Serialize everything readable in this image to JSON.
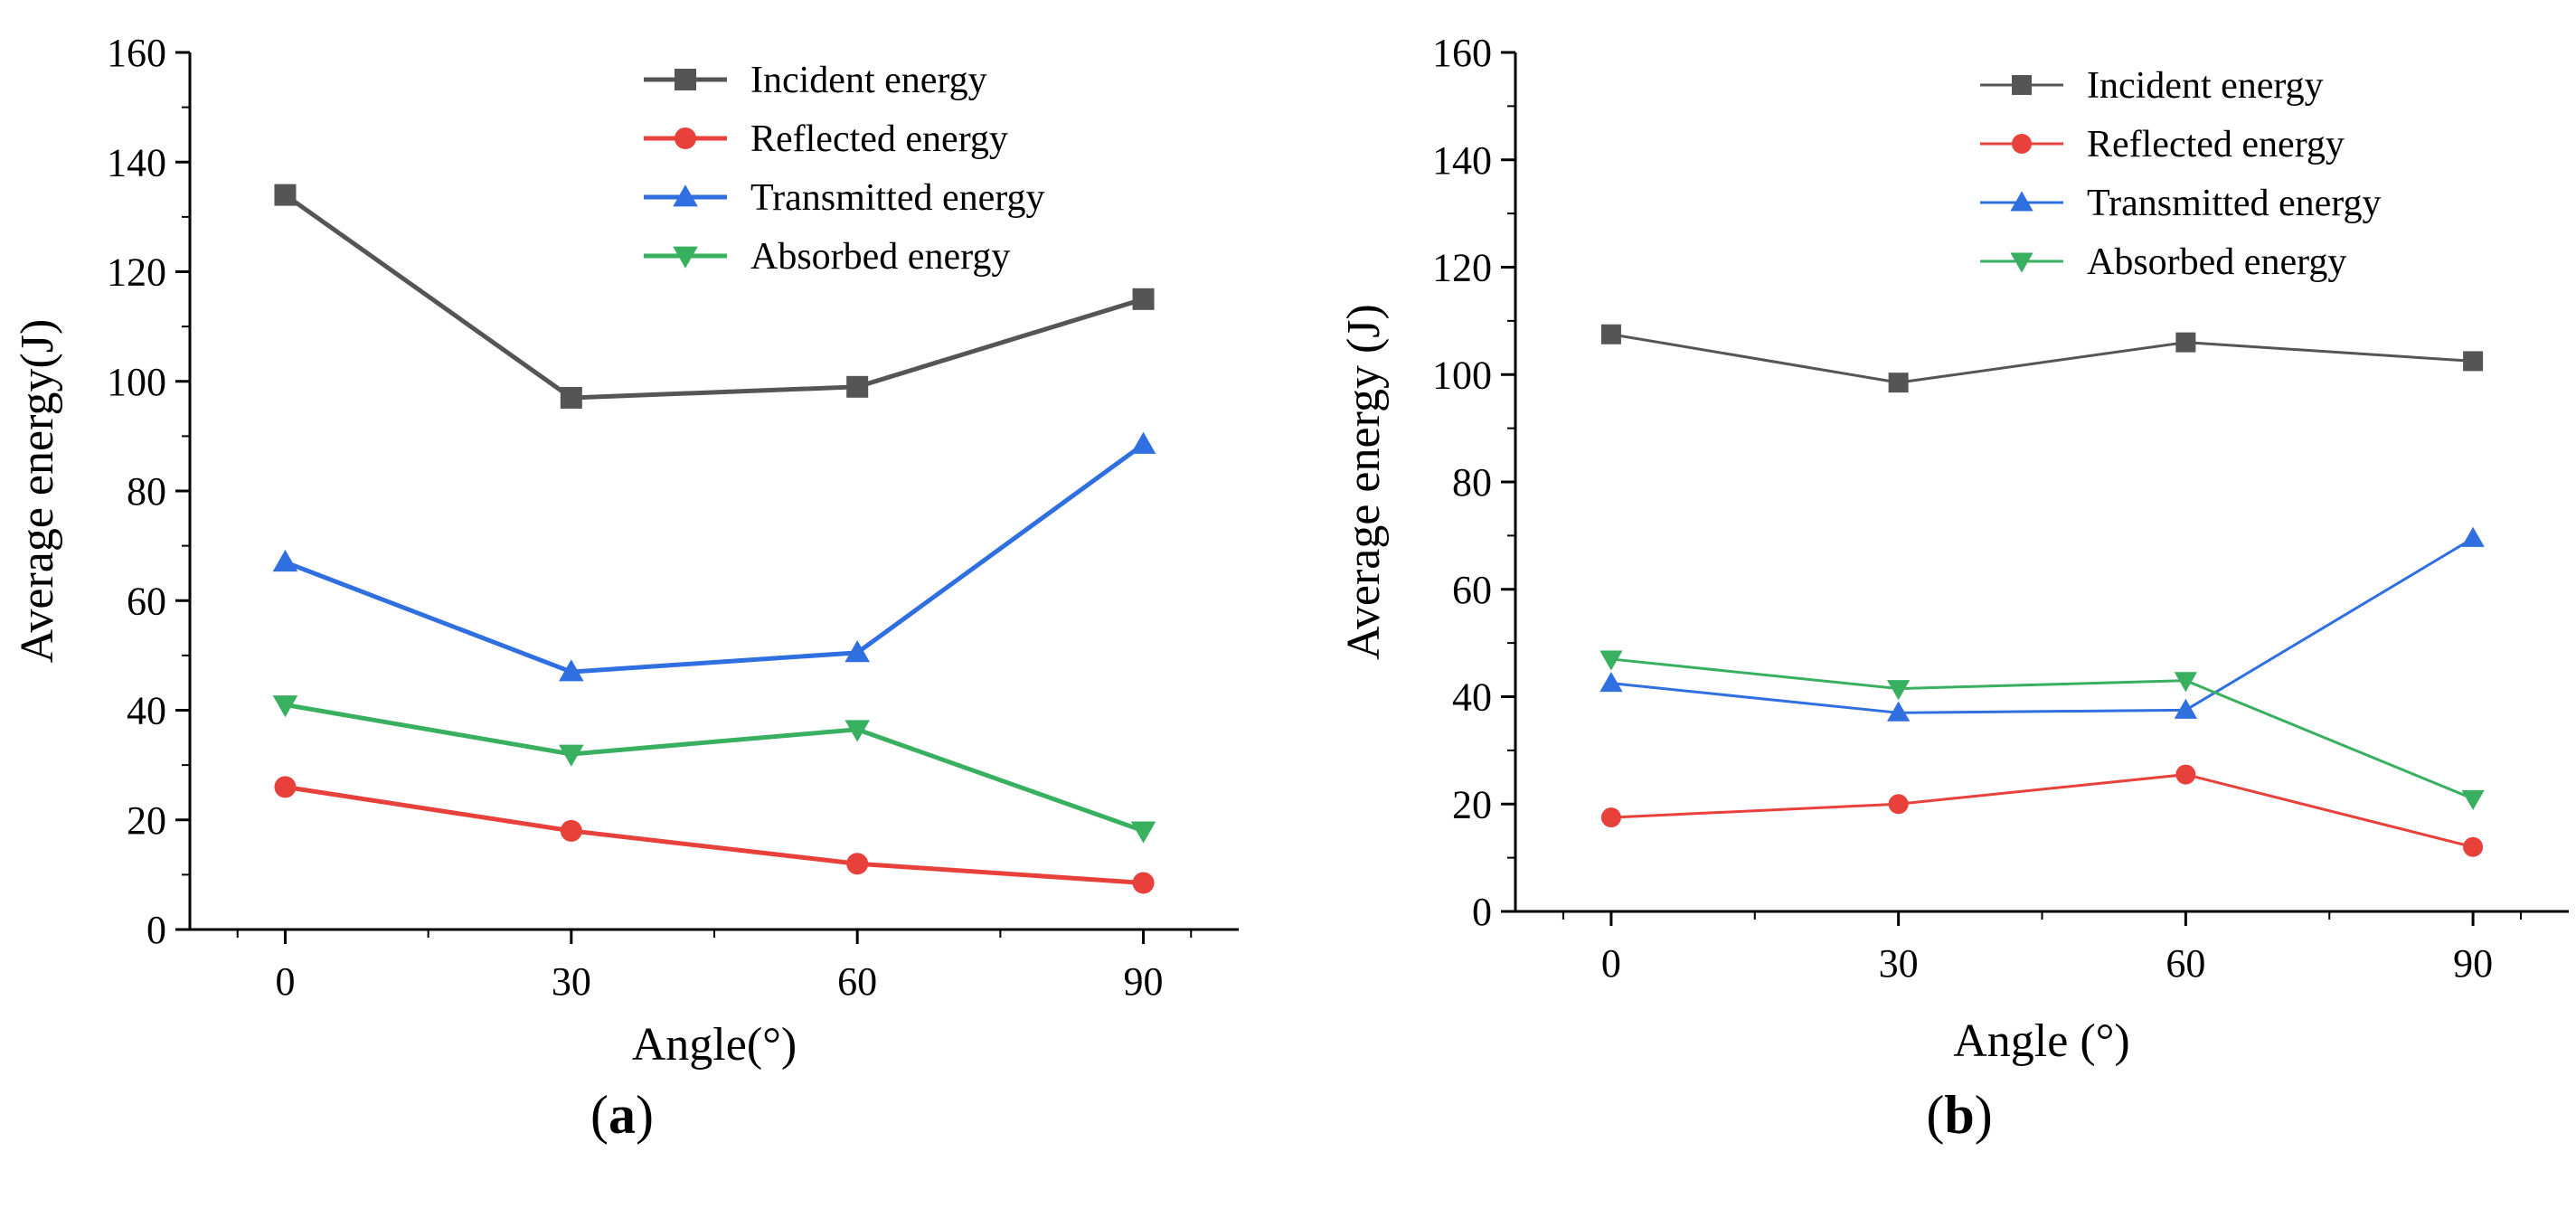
{
  "figure": {
    "panel_labels": [
      {
        "open": "(",
        "letter": "a",
        "close": ")"
      },
      {
        "open": "(",
        "letter": "b",
        "close": ")"
      }
    ]
  },
  "chart_data": [
    {
      "type": "line",
      "panel": "a",
      "xlabel": "Angle(°)",
      "ylabel": "Average energy(J)",
      "x": [
        0,
        30,
        60,
        90
      ],
      "xticks": [
        "0",
        "30",
        "60",
        "90"
      ],
      "xlim": [
        -10,
        100
      ],
      "ylim": [
        0,
        160
      ],
      "yticks": [
        "0",
        "20",
        "40",
        "60",
        "80",
        "100",
        "120",
        "140",
        "160"
      ],
      "legend_position": "top-right",
      "series": [
        {
          "name": "Incident energy",
          "values": [
            134,
            97,
            99,
            115
          ],
          "color": "#555555",
          "marker": "square",
          "line_width": "thick"
        },
        {
          "name": "Reflected energy",
          "values": [
            26,
            18,
            12,
            8.5
          ],
          "color": "#e8403a",
          "marker": "circle",
          "line_width": "thick"
        },
        {
          "name": "Transmitted energy",
          "values": [
            67,
            47,
            50.5,
            88.5
          ],
          "color": "#2f6fe0",
          "marker": "triangle-up",
          "line_width": "thick"
        },
        {
          "name": "Absorbed energy",
          "values": [
            41,
            32,
            36.5,
            18
          ],
          "color": "#38b060",
          "marker": "triangle-down",
          "line_width": "thick"
        }
      ]
    },
    {
      "type": "line",
      "panel": "b",
      "xlabel": "Angle (°)",
      "ylabel": "Average energy (J)",
      "x": [
        0,
        30,
        60,
        90
      ],
      "xticks": [
        "0",
        "30",
        "60",
        "90"
      ],
      "xlim": [
        -10,
        100
      ],
      "ylim": [
        0,
        160
      ],
      "yticks": [
        "0",
        "20",
        "40",
        "60",
        "80",
        "100",
        "120",
        "140",
        "160"
      ],
      "legend_position": "top-right",
      "series": [
        {
          "name": "Incident energy",
          "values": [
            107.5,
            98.5,
            106,
            102.5
          ],
          "color": "#555555",
          "marker": "square",
          "line_width": "thin"
        },
        {
          "name": "Reflected energy",
          "values": [
            17.5,
            20,
            25.5,
            12
          ],
          "color": "#e8403a",
          "marker": "circle",
          "line_width": "thin"
        },
        {
          "name": "Transmitted energy",
          "values": [
            42.5,
            37,
            37.5,
            69.5
          ],
          "color": "#2f6fe0",
          "marker": "triangle-up",
          "line_width": "thin"
        },
        {
          "name": "Absorbed energy",
          "values": [
            47,
            41.5,
            43,
            21
          ],
          "color": "#38b060",
          "marker": "triangle-down",
          "line_width": "thin"
        }
      ]
    }
  ]
}
